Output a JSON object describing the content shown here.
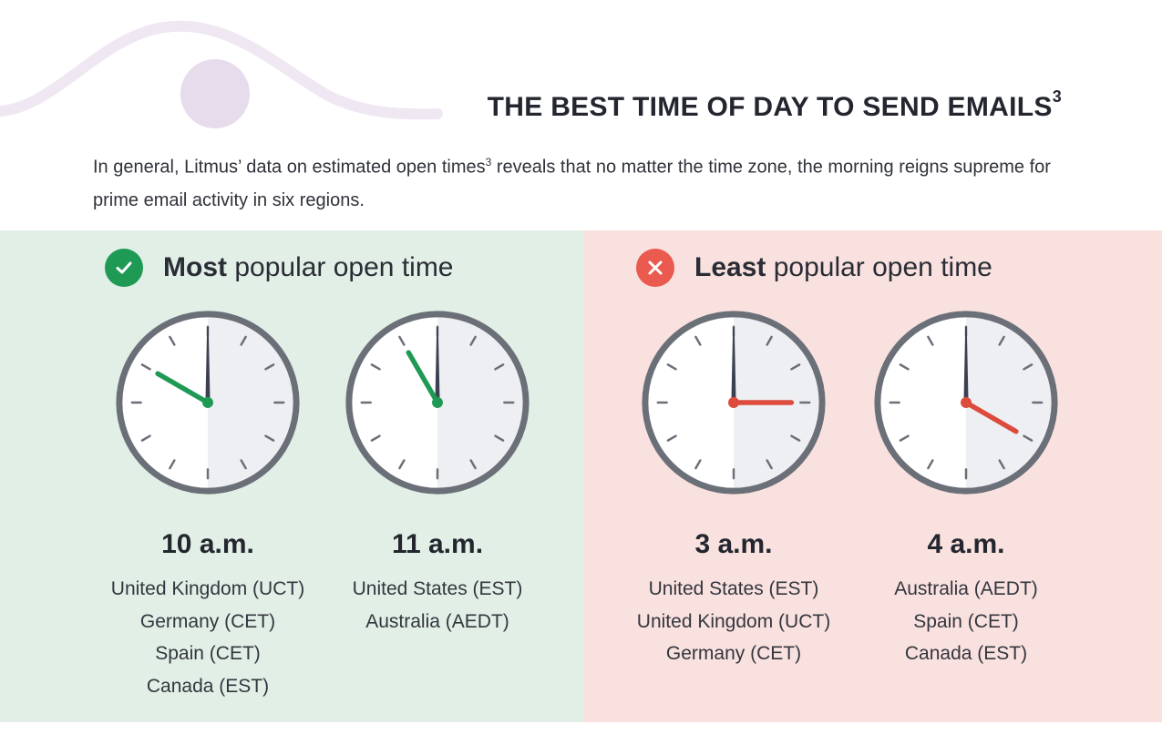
{
  "header": {
    "title": "THE BEST TIME OF DAY TO SEND EMAILS",
    "title_superscript": "3",
    "intro_before": "In general, Litmus’ data on estimated open times",
    "intro_superscript": "3",
    "intro_after": " reveals that no matter the time zone, the morning reigns supreme for prime email activity in six regions."
  },
  "most_popular": {
    "heading_bold": "Most",
    "heading_rest": " popular open time",
    "icon": "check-icon",
    "accent": "#1f9a55",
    "background": "#e1efe6",
    "clocks": [
      {
        "time": "10 a.m.",
        "hour": 10,
        "regions": [
          "United Kingdom (UCT)",
          "Germany (CET)",
          "Spain (CET)",
          "Canada (EST)"
        ]
      },
      {
        "time": "11 a.m.",
        "hour": 11,
        "regions": [
          "United States (EST)",
          "Australia (AEDT)"
        ]
      }
    ]
  },
  "least_popular": {
    "heading_bold": "Least",
    "heading_rest": " popular open time",
    "icon": "x-icon",
    "accent": "#dc4b3c",
    "background": "#f9e1df",
    "clocks": [
      {
        "time": "3 a.m.",
        "hour": 3,
        "regions": [
          "United States (EST)",
          "United Kingdom (UCT)",
          "Germany (CET)"
        ]
      },
      {
        "time": "4 a.m.",
        "hour": 4,
        "regions": [
          "Australia (AEDT)",
          "Spain (CET)",
          "Canada (EST)"
        ]
      }
    ]
  },
  "colors": {
    "clock_rim": "#6b6f78",
    "clock_face_left": "#ffffff",
    "clock_face_right": "#eeeff3",
    "minute_hand": "#3b4150",
    "deco_wave": "#efe8f2",
    "deco_circle": "#e6dcec"
  }
}
